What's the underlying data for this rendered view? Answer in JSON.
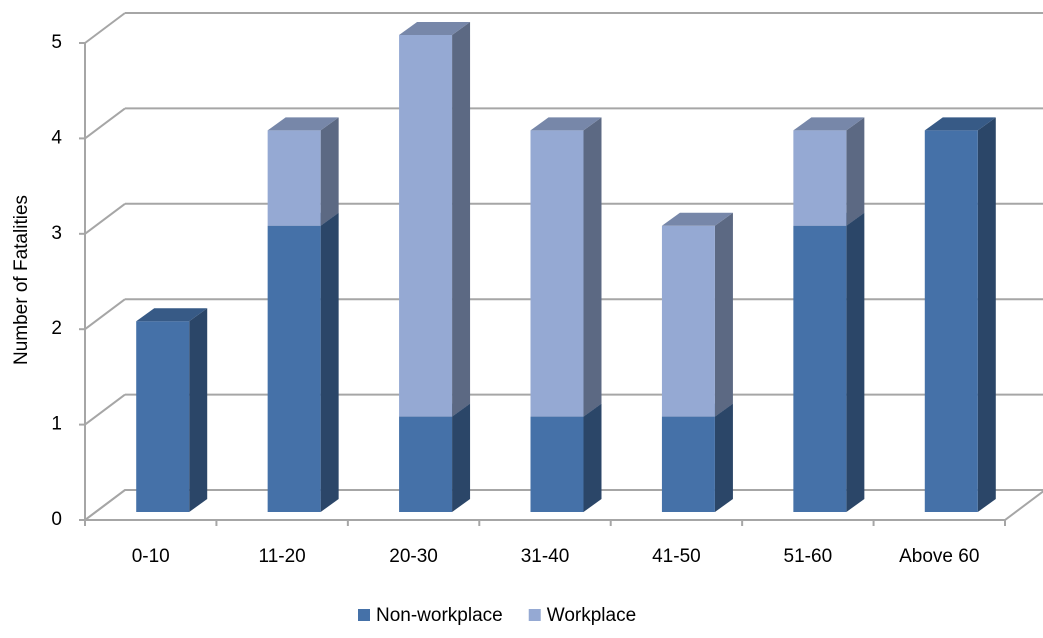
{
  "chart_data": {
    "type": "bar",
    "stacked": true,
    "three_d": true,
    "y_label": "Number of Fatalities",
    "categories": [
      "0-10",
      "11-20",
      "20-30",
      "31-40",
      "41-50",
      "51-60",
      "Above 60"
    ],
    "series": [
      {
        "name": "Non-workplace",
        "color": "#4571a8",
        "values": [
          2,
          3,
          1,
          1,
          1,
          3,
          4
        ]
      },
      {
        "name": "Workplace",
        "color": "#95a9d3",
        "values": [
          0,
          1,
          4,
          3,
          2,
          1,
          0
        ]
      }
    ],
    "ylim": [
      0,
      5
    ],
    "yticks": [
      0,
      1,
      2,
      3,
      4,
      5
    ],
    "grid": true,
    "legend": "bottom"
  }
}
